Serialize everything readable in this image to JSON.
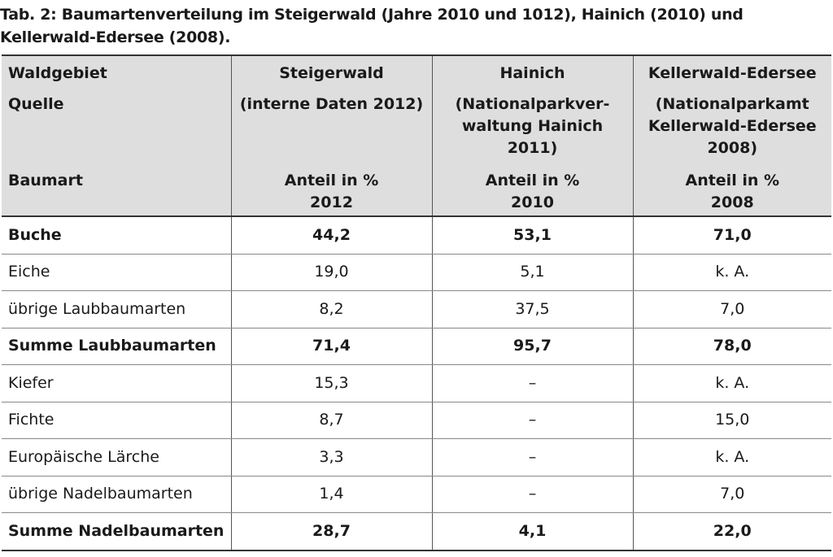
{
  "caption": "Tab. 2: Baumartenverteilung im Steigerwald (Jahre 2010 und 1012), Hainich (2010) und Kellerwald-Edersee (2008).",
  "header": {
    "row1": {
      "label": "Waldgebiet",
      "cols": [
        "Steigerwald",
        "Hainich",
        "Kellerwald-Edersee"
      ]
    },
    "row2": {
      "label": "Quelle",
      "cols": [
        "(interne Daten 2012)",
        "(Nationalparkver-\nwaltung Hainich 2011)",
        "(Nationalparkamt\nKellerwald-Edersee\n2008)"
      ]
    },
    "row3": {
      "label": "Baumart",
      "cols": [
        "Anteil in %\n2012",
        "Anteil in %\n2010",
        "Anteil in %\n2008"
      ]
    }
  },
  "rows": [
    {
      "label": "Buche",
      "values": [
        "44,2",
        "53,1",
        "71,0"
      ],
      "bold": true
    },
    {
      "label": "Eiche",
      "values": [
        "19,0",
        "5,1",
        "k. A."
      ],
      "bold": false
    },
    {
      "label": "übrige Laubbaumarten",
      "values": [
        "8,2",
        "37,5",
        "7,0"
      ],
      "bold": false
    },
    {
      "label": "Summe Laubbaumarten",
      "values": [
        "71,4",
        "95,7",
        "78,0"
      ],
      "bold": true
    },
    {
      "label": "Kiefer",
      "values": [
        "15,3",
        "–",
        "k. A."
      ],
      "bold": false
    },
    {
      "label": "Fichte",
      "values": [
        "8,7",
        "–",
        "15,0"
      ],
      "bold": false
    },
    {
      "label": "Europäische Lärche",
      "values": [
        "3,3",
        "–",
        "k. A."
      ],
      "bold": false
    },
    {
      "label": "übrige Nadelbaumarten",
      "values": [
        "1,4",
        "–",
        "7,0"
      ],
      "bold": false
    },
    {
      "label": "Summe Nadelbaumarten",
      "values": [
        "28,7",
        "4,1",
        "22,0"
      ],
      "bold": true
    }
  ],
  "colors": {
    "header_bg": "#dedede",
    "rule": "#333333"
  }
}
